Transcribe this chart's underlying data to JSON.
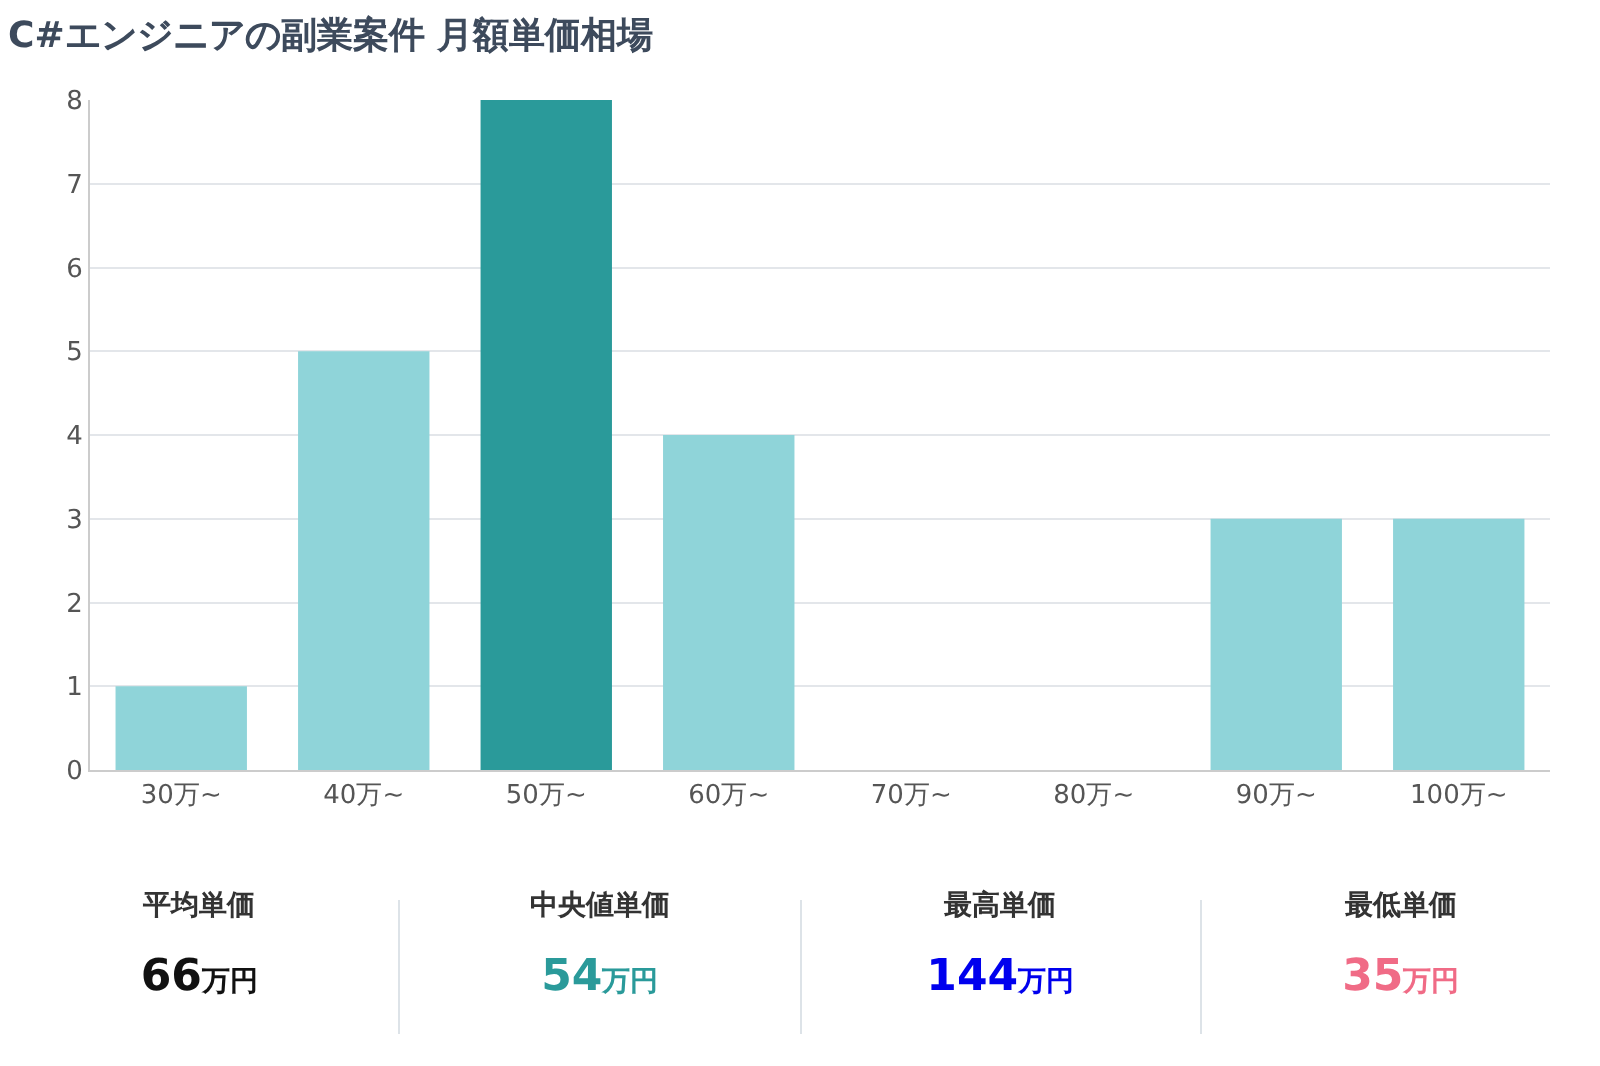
{
  "chart_data": [
    {
      "type": "bar",
      "title": "C#エンジニアの副業案件 月額単価相場",
      "categories": [
        "30万~",
        "40万~",
        "50万~",
        "60万~",
        "70万~",
        "80万~",
        "90万~",
        "100万~"
      ],
      "values": [
        1,
        5,
        8,
        4,
        0,
        0,
        3,
        3
      ],
      "colors": [
        "#8fd4d9",
        "#8fd4d9",
        "#2a9a9a",
        "#8fd4d9",
        "#8fd4d9",
        "#8fd4d9",
        "#8fd4d9",
        "#8fd4d9"
      ],
      "ylim": [
        0,
        8
      ],
      "yticks": [
        0,
        1,
        2,
        3,
        4,
        5,
        6,
        7,
        8
      ],
      "grid": "y"
    },
    {
      "type": "other",
      "categories": [
        "平均単価",
        "中央値単価",
        "最高単価",
        "最低単価"
      ],
      "value_labels": [
        "66万円",
        "54万円",
        "144万円",
        "35万円"
      ],
      "colors": [
        "#111111",
        "#2a9a9a",
        "#0000ee",
        "#f06b86"
      ]
    }
  ]
}
